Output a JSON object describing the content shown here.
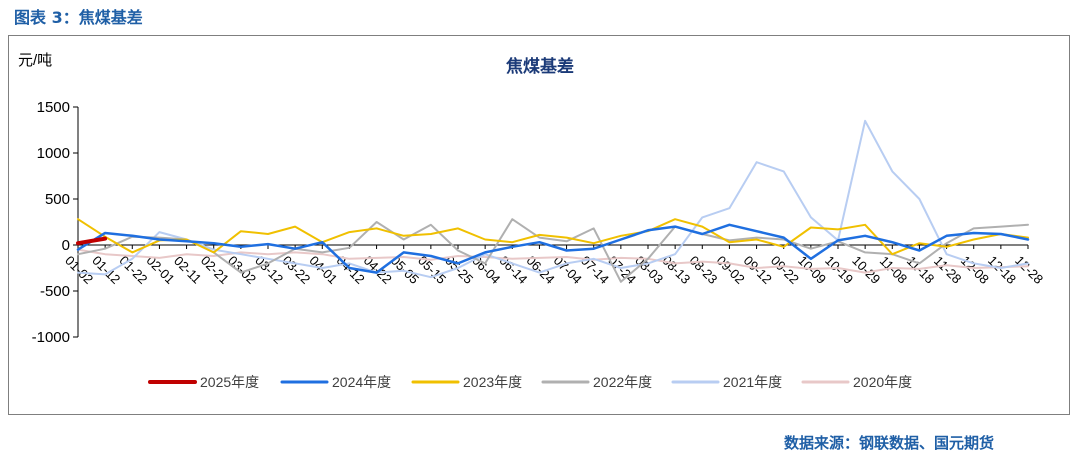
{
  "figure_label": "图表 3：焦煤基差",
  "source_note": "数据来源：钢联数据、国元期货",
  "chart_data": {
    "type": "line",
    "title": "焦煤基差",
    "ylabel": "元/吨",
    "xlabel": "",
    "ylim": [
      -1000,
      1500
    ],
    "yticks": [
      -1000,
      -500,
      0,
      500,
      1000,
      1500
    ],
    "categories": [
      "01-02",
      "01-12",
      "01-22",
      "02-01",
      "02-11",
      "02-21",
      "03-02",
      "03-12",
      "03-22",
      "04-01",
      "04-12",
      "04-22",
      "05-05",
      "05-15",
      "05-25",
      "06-04",
      "06-14",
      "06-24",
      "07-04",
      "07-14",
      "07-24",
      "08-03",
      "08-13",
      "08-23",
      "09-02",
      "09-12",
      "09-22",
      "10-09",
      "10-19",
      "10-29",
      "11-08",
      "11-18",
      "11-28",
      "12-08",
      "12-18",
      "12-28"
    ],
    "series": [
      {
        "name": "2025年度",
        "color": "#c00000",
        "width": 4,
        "values": [
          20,
          70,
          null,
          null,
          null,
          null,
          null,
          null,
          null,
          null,
          null,
          null,
          null,
          null,
          null,
          null,
          null,
          null,
          null,
          null,
          null,
          null,
          null,
          null,
          null,
          null,
          null,
          null,
          null,
          null,
          null,
          null,
          null,
          null,
          null,
          null
        ]
      },
      {
        "name": "2024年度",
        "color": "#1f6fe0",
        "width": 2.5,
        "values": [
          -50,
          130,
          100,
          60,
          40,
          20,
          -20,
          10,
          -40,
          30,
          -250,
          -300,
          -80,
          -120,
          -200,
          -80,
          -20,
          30,
          -60,
          -40,
          60,
          160,
          200,
          120,
          220,
          150,
          80,
          -150,
          50,
          100,
          30,
          -60,
          100,
          130,
          120,
          60
        ]
      },
      {
        "name": "2023年度",
        "color": "#f0c000",
        "width": 2,
        "values": [
          280,
          90,
          -80,
          50,
          60,
          -80,
          150,
          120,
          200,
          30,
          140,
          180,
          100,
          120,
          180,
          60,
          30,
          110,
          80,
          20,
          100,
          150,
          280,
          200,
          30,
          60,
          -20,
          190,
          170,
          220,
          -100,
          20,
          -20,
          60,
          120,
          80
        ]
      },
      {
        "name": "2022年度",
        "color": "#b0b0b0",
        "width": 2,
        "values": [
          -100,
          -40,
          90,
          80,
          60,
          -80,
          -300,
          -200,
          -40,
          -80,
          -30,
          250,
          60,
          220,
          -60,
          -200,
          280,
          80,
          40,
          180,
          -400,
          -150,
          200,
          120,
          50,
          80,
          60,
          -40,
          40,
          -80,
          -100,
          -200,
          20,
          180,
          200,
          220
        ]
      },
      {
        "name": "2021年度",
        "color": "#b8cdf2",
        "width": 2,
        "values": [
          -300,
          -320,
          -150,
          140,
          60,
          -50,
          -100,
          -150,
          -200,
          -250,
          -200,
          -300,
          -280,
          -350,
          -250,
          -100,
          -200,
          -300,
          -200,
          -150,
          -250,
          -200,
          -100,
          300,
          400,
          900,
          800,
          300,
          50,
          1350,
          800,
          500,
          -100,
          -200,
          -250,
          -200
        ]
      },
      {
        "name": "2020年度",
        "color": "#e8c8c8",
        "width": 2,
        "values": [
          -50,
          -100,
          -120,
          -140,
          -100,
          -120,
          -80,
          -100,
          -80,
          -100,
          -150,
          -140,
          -130,
          -160,
          -120,
          -130,
          -150,
          -140,
          -130,
          -160,
          -140,
          -150,
          -200,
          -180,
          -200,
          -250,
          -230,
          -260,
          -250,
          -300,
          -250,
          -260,
          -220,
          -250,
          -240,
          -230
        ]
      }
    ]
  }
}
